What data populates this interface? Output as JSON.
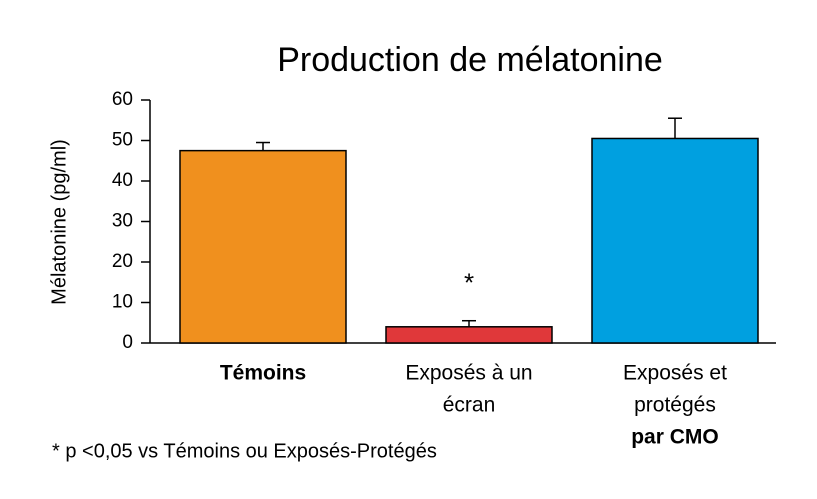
{
  "chart_data": {
    "type": "bar",
    "title": "Production de mélatonine",
    "y_label": "Mélatonine (pg/ml)",
    "categories": [
      [
        "Témoins"
      ],
      [
        "Exposés à un",
        "écran"
      ],
      [
        "Exposés et",
        "protégés",
        "par CMO"
      ]
    ],
    "category_bold": [
      [
        true
      ],
      [
        false,
        false
      ],
      [
        false,
        false,
        true
      ]
    ],
    "values": [
      47.5,
      4,
      50.5
    ],
    "errors": [
      2,
      1.5,
      5
    ],
    "colors": [
      "#f0901e",
      "#e0383a",
      "#00a0e0"
    ],
    "value_annotations": [
      null,
      "*",
      null
    ],
    "footnote": "* p <0,05 vs Témoins ou Exposés-Protégés",
    "ylim": [
      0,
      60
    ],
    "yticks": [
      0,
      10,
      20,
      30,
      40,
      50,
      60
    ],
    "grid": false
  }
}
